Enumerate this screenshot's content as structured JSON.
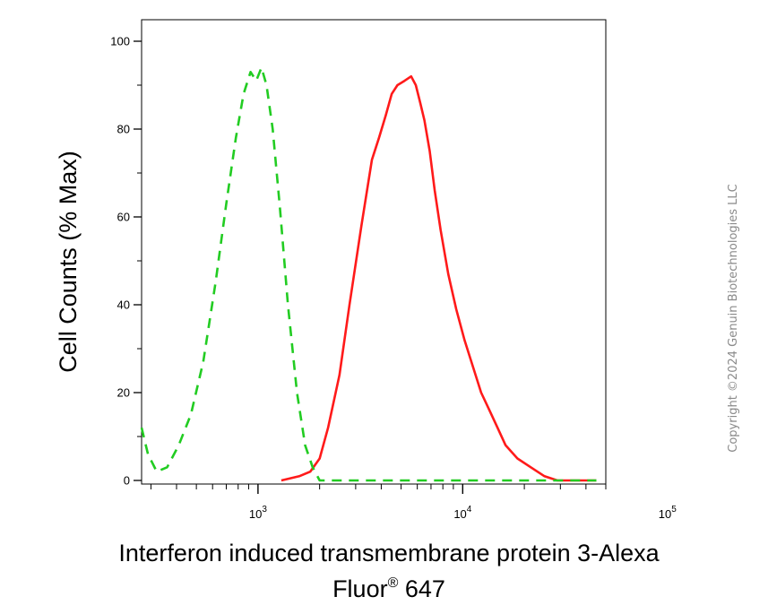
{
  "chart_data": {
    "type": "line",
    "xlabel": "Interferon induced transmembrane protein 3-Alexa",
    "xlabel_line2_text": "Fluor",
    "xlabel_line2_sup": "®",
    "xlabel_line2_end": " 647",
    "ylabel": "Cell Counts (% Max)",
    "x_scale": "log",
    "xlim": [
      270,
      50000
    ],
    "ylim": [
      0,
      100
    ],
    "y_ticks": [
      0,
      20,
      40,
      60,
      80,
      100
    ],
    "y_tick_labels": [
      "0",
      "20",
      "40",
      "60",
      "80",
      "100"
    ],
    "x_ticks": [
      {
        "value": 1000,
        "base": "10",
        "exp": "3"
      },
      {
        "value": 10000,
        "base": "10",
        "exp": "4"
      },
      {
        "value": 100000,
        "base": "10",
        "exp": "5"
      }
    ],
    "grid": false,
    "legend": "none",
    "series": [
      {
        "color": "#ff1a1a",
        "style": "solid",
        "x": [
          1300,
          1600,
          1800,
          2000,
          2200,
          2500,
          2800,
          3200,
          3600,
          3900,
          4200,
          4500,
          4800,
          5200,
          5600,
          5900,
          6200,
          6500,
          6900,
          7300,
          7800,
          8500,
          9300,
          10200,
          11200,
          12300,
          13500,
          14800,
          16200,
          18500,
          21500,
          25000,
          29000,
          33000,
          38000,
          45000
        ],
        "y": [
          0,
          1,
          2,
          5,
          12,
          24,
          40,
          58,
          73,
          78,
          83,
          88,
          90,
          91,
          92,
          90,
          86,
          82,
          75,
          66,
          57,
          47,
          39,
          32,
          26,
          20,
          16,
          12,
          8,
          5,
          3,
          1,
          0,
          0,
          0,
          0
        ]
      },
      {
        "color": "#22cc22",
        "style": "dashed",
        "x": [
          270,
          290,
          320,
          360,
          410,
          470,
          540,
          620,
          700,
          780,
          850,
          920,
          980,
          1040,
          1100,
          1180,
          1280,
          1400,
          1550,
          1700,
          1850,
          2000,
          2200,
          2600,
          3200,
          4500,
          8000,
          20000,
          45000
        ],
        "y": [
          12,
          6,
          2,
          3,
          8,
          15,
          27,
          45,
          63,
          78,
          88,
          93,
          91,
          94,
          90,
          80,
          62,
          40,
          20,
          8,
          3,
          0,
          0,
          0,
          0,
          0,
          0,
          0,
          0
        ]
      }
    ]
  },
  "copyright": "Copyright ©2024 Genuin Biotechnologies LLC"
}
